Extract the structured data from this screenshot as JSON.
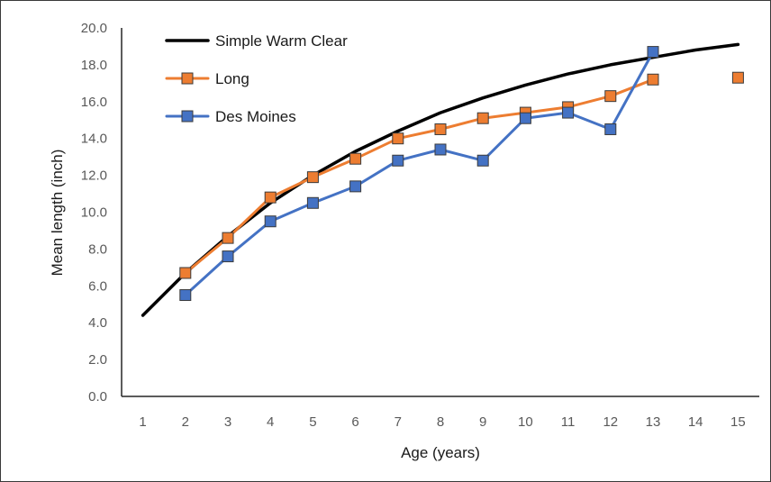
{
  "chart_data": {
    "type": "line",
    "title": "",
    "xlabel": "Age (years)",
    "ylabel": "Mean length (inch)",
    "xlim": [
      0.5,
      15.5
    ],
    "ylim": [
      0,
      20
    ],
    "x_ticks": [
      1,
      2,
      3,
      4,
      5,
      6,
      7,
      8,
      9,
      10,
      11,
      12,
      13,
      14,
      15
    ],
    "y_ticks": [
      "0.0",
      "2.0",
      "4.0",
      "6.0",
      "8.0",
      "10.0",
      "12.0",
      "14.0",
      "16.0",
      "18.0",
      "20.0"
    ],
    "grid": false,
    "legend_position": "top-left",
    "series": [
      {
        "name": "Simple Warm Clear",
        "color": "#000000",
        "marker": "none",
        "x": [
          1,
          2,
          3,
          4,
          5,
          6,
          7,
          8,
          9,
          10,
          11,
          12,
          13,
          14,
          15
        ],
        "y": [
          4.4,
          6.7,
          8.7,
          10.5,
          12.0,
          13.3,
          14.4,
          15.4,
          16.2,
          16.9,
          17.5,
          18.0,
          18.4,
          18.8,
          19.1
        ]
      },
      {
        "name": "Long",
        "color": "#ED7D31",
        "marker": "square",
        "x": [
          2,
          3,
          4,
          5,
          6,
          7,
          8,
          9,
          10,
          11,
          12,
          13,
          15
        ],
        "y": [
          6.7,
          8.6,
          10.8,
          11.9,
          12.9,
          14.0,
          14.5,
          15.1,
          15.4,
          15.7,
          16.3,
          17.2,
          17.3
        ],
        "connected_through": 13
      },
      {
        "name": "Des Moines",
        "color": "#4472C4",
        "marker": "square",
        "x": [
          2,
          3,
          4,
          5,
          6,
          7,
          8,
          9,
          10,
          11,
          12,
          13
        ],
        "y": [
          5.5,
          7.6,
          9.5,
          10.5,
          11.4,
          12.8,
          13.4,
          12.8,
          15.1,
          15.4,
          14.5,
          18.7
        ]
      }
    ]
  }
}
